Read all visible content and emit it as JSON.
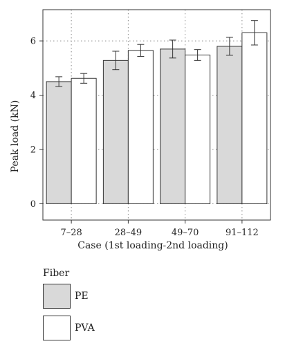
{
  "chart_data": {
    "type": "bar",
    "categories": [
      "7–28",
      "28–49",
      "49–70",
      "91–112"
    ],
    "series": [
      {
        "name": "PE",
        "color": "#d9d9d9",
        "values": [
          4.5,
          5.28,
          5.7,
          5.8
        ],
        "errors": [
          0.18,
          0.34,
          0.33,
          0.33
        ]
      },
      {
        "name": "PVA",
        "color": "#ffffff",
        "values": [
          4.62,
          5.65,
          5.48,
          6.3
        ],
        "errors": [
          0.18,
          0.22,
          0.2,
          0.45
        ]
      }
    ],
    "xlabel": "Case (1st loading-2nd loading)",
    "ylabel": "Peak load (kN)",
    "ylim": [
      -0.6,
      7.15
    ],
    "yticks": [
      0,
      2,
      4,
      6
    ],
    "grid": true,
    "legend": {
      "title": "Fiber",
      "placement": "bottom-left"
    }
  }
}
